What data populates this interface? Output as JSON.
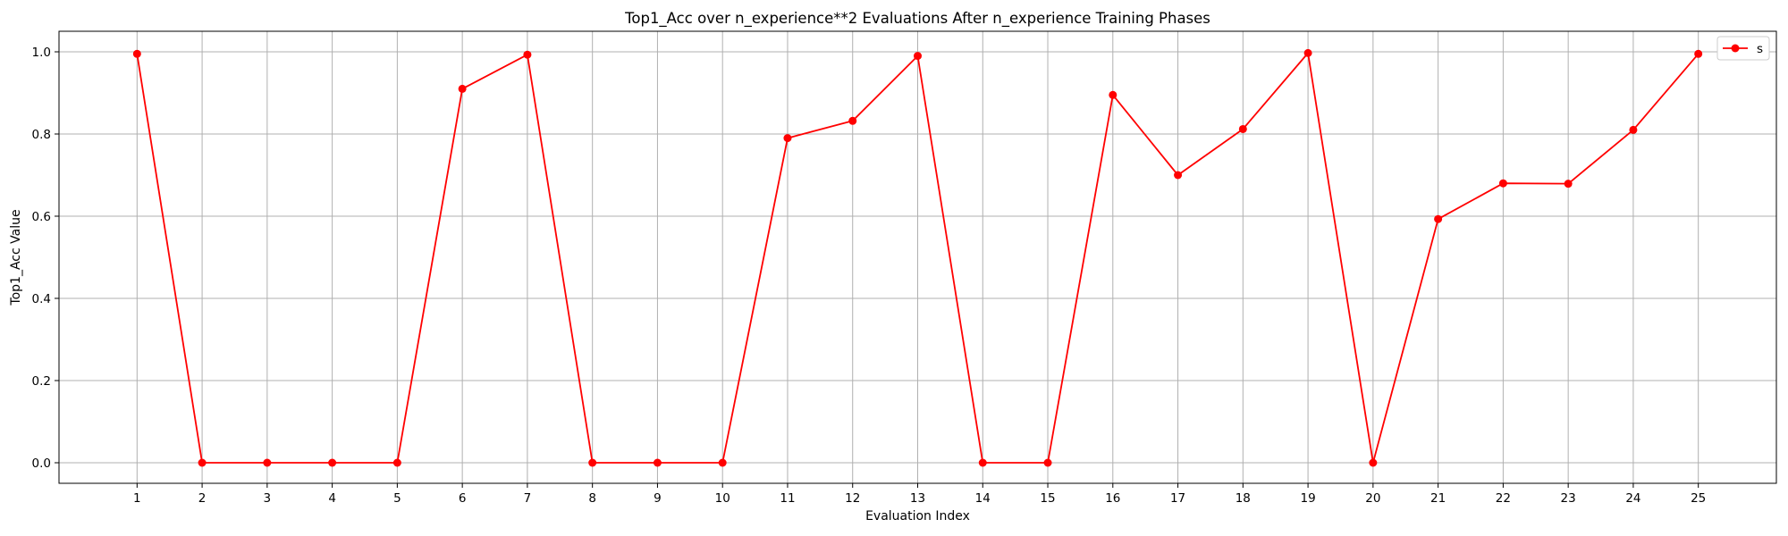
{
  "chart_data": {
    "type": "line",
    "title": "Top1_Acc over n_experience**2 Evaluations After n_experience Training Phases",
    "xlabel": "Evaluation Index",
    "ylabel": "Top1_Acc Value",
    "x": [
      1,
      2,
      3,
      4,
      5,
      6,
      7,
      8,
      9,
      10,
      11,
      12,
      13,
      14,
      15,
      16,
      17,
      18,
      19,
      20,
      21,
      22,
      23,
      24,
      25
    ],
    "xlim": [
      -0.2,
      26.2
    ],
    "ylim": [
      -0.05,
      1.05
    ],
    "yticks": [
      0.0,
      0.2,
      0.4,
      0.6,
      0.8,
      1.0
    ],
    "ytick_labels": [
      "0.0",
      "0.2",
      "0.4",
      "0.6",
      "0.8",
      "1.0"
    ],
    "grid": true,
    "legend_position": "top-right",
    "series": [
      {
        "name": "s",
        "color": "#ff0000",
        "marker": "circle",
        "values": [
          0.995,
          0.0,
          0.0,
          0.0,
          0.0,
          0.91,
          0.993,
          0.0,
          0.0,
          0.0,
          0.79,
          0.832,
          0.99,
          0.0,
          0.0,
          0.895,
          0.7,
          0.812,
          0.997,
          0.0,
          0.593,
          0.68,
          0.679,
          0.81,
          0.995
        ]
      }
    ]
  }
}
